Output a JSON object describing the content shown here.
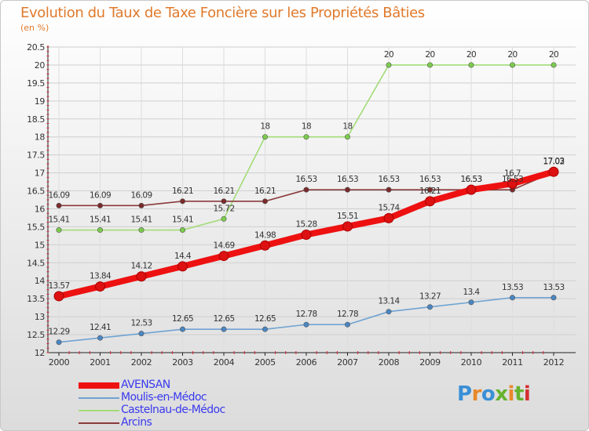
{
  "page": {
    "title": "Evolution du Taux de Taxe Foncière sur les Propriétés Bâties",
    "subtitle": "(en %)"
  },
  "logo": {
    "text": "Proxiti",
    "colors": [
      "#3a8fd6",
      "#e8882a",
      "#3a8fd6",
      "#66b32e",
      "#e8882a",
      "#66b32e",
      "#d43030"
    ]
  },
  "chart_data": {
    "type": "line",
    "title": "Evolution du Taux de Taxe Foncière sur les Propriétés Bâties",
    "ylabel": "(en %)",
    "xlabel": "",
    "ylim": [
      12,
      20.5
    ],
    "yticks": [
      12,
      12.5,
      13,
      13.5,
      14,
      14.5,
      15,
      15.5,
      16,
      16.5,
      17,
      17.5,
      18,
      18.5,
      19,
      19.5,
      20,
      20.5
    ],
    "ytick_labels": [
      "12",
      "12.5",
      "13",
      "13.5",
      "14",
      "14.5",
      "15",
      "15.5",
      "16",
      "16.5",
      "17",
      "17.5",
      "18",
      "18.5",
      "19",
      "19.5",
      "20",
      "20.5"
    ],
    "categories": [
      "2000",
      "2001",
      "2002",
      "2003",
      "2004",
      "2005",
      "2006",
      "2007",
      "2008",
      "2009",
      "2010",
      "2011",
      "2012"
    ],
    "legend_position": "bottom-left",
    "series": [
      {
        "name": "AVENSAN",
        "color": "#ee1111",
        "marker": "#dd1111",
        "values": [
          13.57,
          13.84,
          14.12,
          14.4,
          14.69,
          14.98,
          15.28,
          15.51,
          15.74,
          16.21,
          16.53,
          16.7,
          17.03
        ],
        "labels": [
          "13.57",
          "13.84",
          "14.12",
          "14.4",
          "14.69",
          "14.98",
          "15.28",
          "15.51",
          "15.74",
          "16.21",
          "16.53",
          "16.7",
          "17.03"
        ]
      },
      {
        "name": "Moulis-en-Médoc",
        "color": "#6fa3d2",
        "marker": "#4a86c2",
        "values": [
          12.29,
          12.41,
          12.53,
          12.65,
          12.65,
          12.65,
          12.78,
          12.78,
          13.14,
          13.27,
          13.4,
          13.53,
          13.53
        ],
        "labels": [
          "12.29",
          "12.41",
          "12.53",
          "12.65",
          "12.65",
          "12.65",
          "12.78",
          "12.78",
          "13.14",
          "13.27",
          "13.4",
          "13.53",
          "13.53"
        ]
      },
      {
        "name": "Castelnau-de-Médoc",
        "color": "#a3dc78",
        "marker": "#7ccc4c",
        "values": [
          15.41,
          15.41,
          15.41,
          15.41,
          15.72,
          18,
          18,
          18,
          20,
          20,
          20,
          20,
          20
        ],
        "labels": [
          "15.41",
          "15.41",
          "15.41",
          "15.41",
          "15.72",
          "18",
          "18",
          "18",
          "20",
          "20",
          "20",
          "20",
          "20"
        ]
      },
      {
        "name": "Arcins",
        "color": "#8b3a3a",
        "marker": "#7a2a2a",
        "values": [
          16.09,
          16.09,
          16.09,
          16.21,
          16.21,
          16.21,
          16.53,
          16.53,
          16.53,
          16.53,
          16.53,
          16.53,
          17.02
        ],
        "labels": [
          "16.09",
          "16.09",
          "16.09",
          "16.21",
          "16.21",
          "16.21",
          "16.53",
          "16.53",
          "16.53",
          "16.53",
          "16.53",
          "16.53",
          "17.02"
        ]
      }
    ]
  }
}
